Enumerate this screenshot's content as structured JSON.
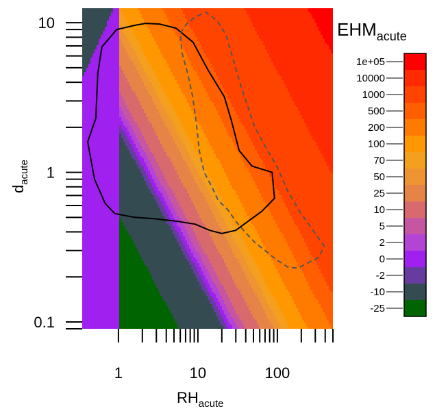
{
  "chart_data": {
    "type": "heatmap",
    "title": "",
    "xlabel": {
      "main": "RH",
      "sub": "acute"
    },
    "ylabel": {
      "main": "d",
      "sub": "acute"
    },
    "x_scale": "log",
    "y_scale": "log",
    "xlim": [
      0.35,
      500
    ],
    "ylim": [
      0.09,
      12.5
    ],
    "x_tick_labels": [
      {
        "value": 1,
        "label": "1"
      },
      {
        "value": 10,
        "label": "10"
      },
      {
        "value": 100,
        "label": "100"
      }
    ],
    "y_tick_labels": [
      {
        "value": 0.1,
        "label": "0.1"
      },
      {
        "value": 1,
        "label": "1"
      },
      {
        "value": 10,
        "label": "10"
      }
    ],
    "legend": {
      "title": {
        "main": "EHM",
        "sub": "acute"
      },
      "placement": "right",
      "bins": [
        {
          "label": "1e+05",
          "color": "#ff0000"
        },
        {
          "label": "10000",
          "color": "#ff2a00"
        },
        {
          "label": "1000",
          "color": "#ff4400"
        },
        {
          "label": "500",
          "color": "#ff5f00"
        },
        {
          "label": "200",
          "color": "#ff7b00"
        },
        {
          "label": "100",
          "color": "#ff9800"
        },
        {
          "label": "70",
          "color": "#f4a01e"
        },
        {
          "label": "50",
          "color": "#ee9433"
        },
        {
          "label": "25",
          "color": "#e68447"
        },
        {
          "label": "10",
          "color": "#d86a6e"
        },
        {
          "label": "5",
          "color": "#c756a2"
        },
        {
          "label": "2",
          "color": "#b444d4"
        },
        {
          "label": "0",
          "color": "#a020f0"
        },
        {
          "label": "-2",
          "color": "#663d9e"
        },
        {
          "label": "-10",
          "color": "#354b52"
        },
        {
          "label": "-25",
          "color": "#006400"
        }
      ]
    },
    "surface": {
      "low_rh_threshold": 1.0,
      "band_value_at_low_rh": 0.0,
      "band_value_high_d": -10.0
    },
    "contours": [
      {
        "style": "solid",
        "color": "#000000",
        "points": [
          [
            0.55,
            4.6
          ],
          [
            0.62,
            6.9
          ],
          [
            0.95,
            9.0
          ],
          [
            1.6,
            9.6
          ],
          [
            2.2,
            9.9
          ],
          [
            3.3,
            9.8
          ],
          [
            5.3,
            9.2
          ],
          [
            8.7,
            7.4
          ],
          [
            13.5,
            4.8
          ],
          [
            21.5,
            3.2
          ],
          [
            26.5,
            2.2
          ],
          [
            33,
            1.4
          ],
          [
            48,
            1.1
          ],
          [
            86,
            1.0
          ],
          [
            92,
            0.67
          ],
          [
            64,
            0.55
          ],
          [
            45,
            0.48
          ],
          [
            30,
            0.41
          ],
          [
            20,
            0.39
          ],
          [
            14,
            0.41
          ],
          [
            9.3,
            0.45
          ],
          [
            5.6,
            0.47
          ],
          [
            2.8,
            0.49
          ],
          [
            1.6,
            0.5
          ],
          [
            0.9,
            0.53
          ],
          [
            0.68,
            0.62
          ],
          [
            0.5,
            0.9
          ],
          [
            0.41,
            1.6
          ],
          [
            0.52,
            2.3
          ],
          [
            0.55,
            4.6
          ]
        ]
      },
      {
        "style": "dashed",
        "color": "#555555",
        "points": [
          [
            6.0,
            8.5
          ],
          [
            7.2,
            9.8
          ],
          [
            9.0,
            10.8
          ],
          [
            12.5,
            11.8
          ],
          [
            17.5,
            10.3
          ],
          [
            22.5,
            8.3
          ],
          [
            27,
            6.0
          ],
          [
            31.5,
            4.5
          ],
          [
            37,
            3.4
          ],
          [
            44,
            2.6
          ],
          [
            52,
            2.0
          ],
          [
            70,
            1.5
          ],
          [
            98,
            1.1
          ],
          [
            135,
            0.75
          ],
          [
            190,
            0.55
          ],
          [
            300,
            0.39
          ],
          [
            390,
            0.32
          ],
          [
            330,
            0.27
          ],
          [
            185,
            0.23
          ],
          [
            140,
            0.23
          ],
          [
            98,
            0.26
          ],
          [
            70,
            0.3
          ],
          [
            52,
            0.34
          ],
          [
            39,
            0.4
          ],
          [
            30,
            0.47
          ],
          [
            24,
            0.56
          ],
          [
            18,
            0.65
          ],
          [
            15,
            0.8
          ],
          [
            12,
            1.0
          ],
          [
            10.4,
            1.4
          ],
          [
            9.6,
            2.1
          ],
          [
            8.6,
            3.2
          ],
          [
            7.5,
            4.5
          ],
          [
            6.3,
            6.3
          ],
          [
            6.0,
            8.5
          ]
        ]
      }
    ]
  }
}
